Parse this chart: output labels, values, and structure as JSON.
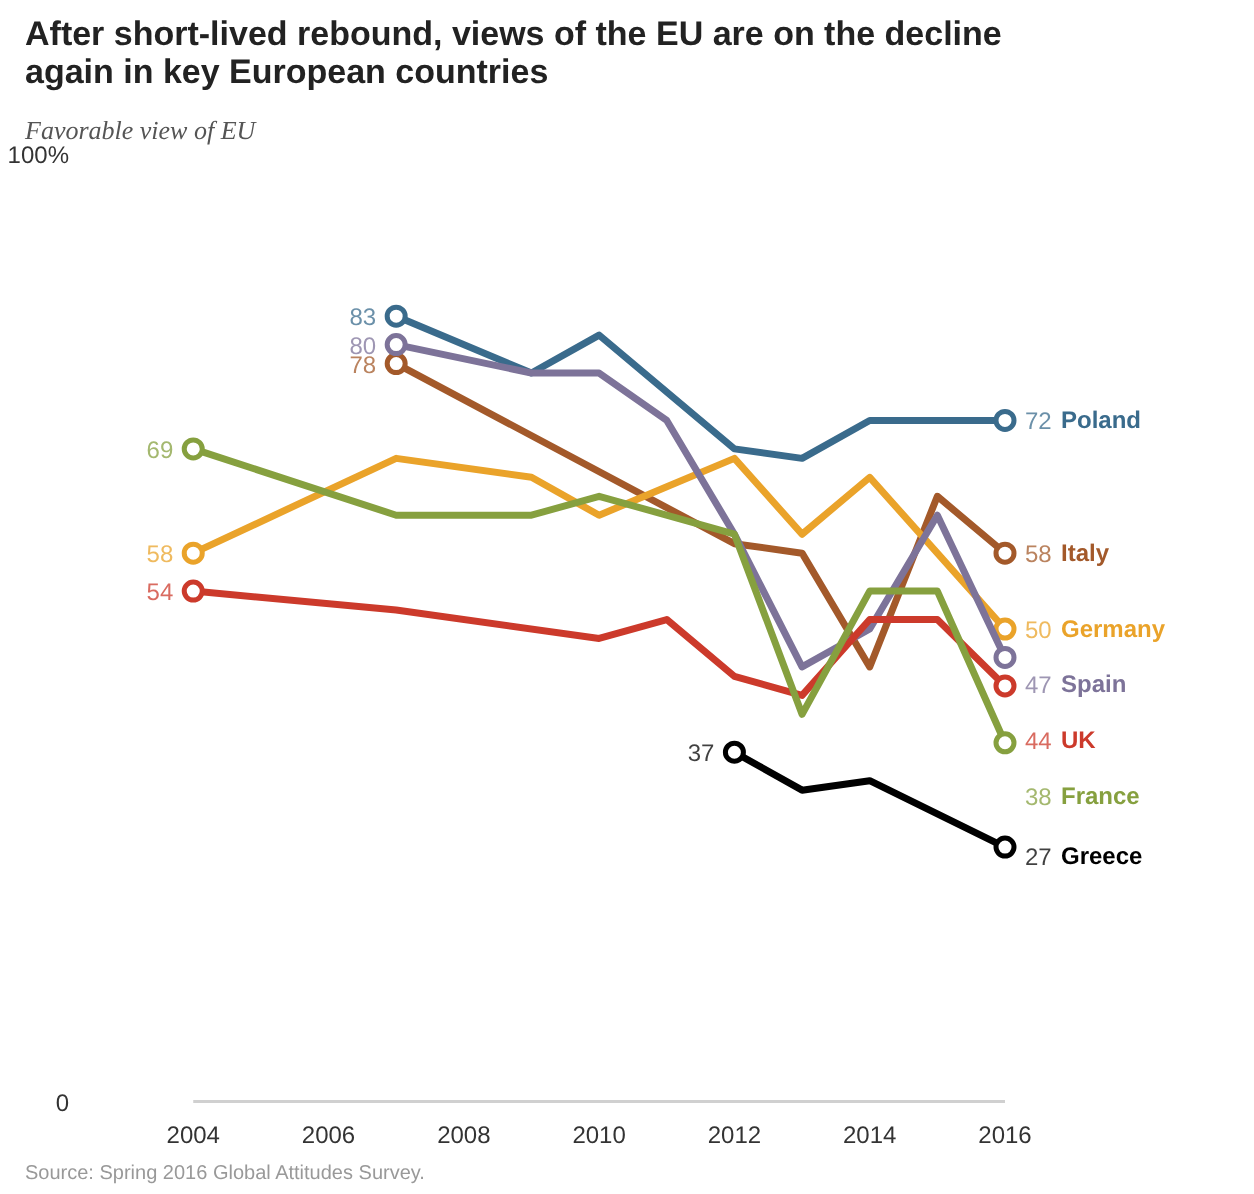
{
  "chart_data": {
    "type": "line",
    "title": "After short-lived rebound, views of the EU are on the decline again in key European countries",
    "subtitle": "Favorable view of EU",
    "xlim": [
      2004,
      2016
    ],
    "xticks": [
      2004,
      2006,
      2008,
      2010,
      2012,
      2014,
      2016
    ],
    "ylim": [
      0,
      100
    ],
    "yticks": [
      {
        "value": 0,
        "label": "0"
      },
      {
        "value": 100,
        "label": "100%"
      }
    ],
    "grid": false,
    "line_style": "solid",
    "series": [
      {
        "name": "Poland",
        "color": "#3a6b8c",
        "x": [
          2007,
          2009,
          2010,
          2012,
          2013,
          2014,
          2015,
          2016
        ],
        "values": [
          83,
          77,
          81,
          69,
          68,
          72,
          72,
          72
        ],
        "value_labels": [
          "83",
          null,
          null,
          null,
          null,
          null,
          null,
          "72"
        ]
      },
      {
        "name": "Italy",
        "color": "#a3592a",
        "x": [
          2007,
          2012,
          2013,
          2014,
          2015,
          2016
        ],
        "values": [
          78,
          59,
          58,
          46,
          64,
          58
        ],
        "value_labels": [
          "78",
          null,
          null,
          null,
          null,
          "58"
        ]
      },
      {
        "name": "Germany",
        "color": "#eaa32a",
        "x": [
          2004,
          2007,
          2009,
          2010,
          2011,
          2012,
          2013,
          2014,
          2015,
          2016
        ],
        "values": [
          58,
          68,
          66,
          62,
          65,
          68,
          60,
          66,
          58,
          50
        ],
        "value_labels": [
          "58",
          null,
          null,
          null,
          null,
          null,
          null,
          null,
          null,
          "50"
        ]
      },
      {
        "name": "Spain",
        "color": "#7d7399",
        "x": [
          2007,
          2009,
          2010,
          2011,
          2012,
          2013,
          2014,
          2015,
          2016
        ],
        "values": [
          80,
          77,
          77,
          72,
          60,
          46,
          50,
          62,
          47
        ],
        "value_labels": [
          "80",
          null,
          null,
          null,
          null,
          null,
          null,
          null,
          "47"
        ]
      },
      {
        "name": "UK",
        "color": "#cc3a2b",
        "x": [
          2004,
          2007,
          2010,
          2011,
          2012,
          2013,
          2014,
          2015,
          2016
        ],
        "values": [
          54,
          52,
          49,
          51,
          45,
          43,
          51,
          51,
          44
        ],
        "value_labels": [
          "54",
          null,
          null,
          null,
          null,
          null,
          null,
          null,
          "44"
        ]
      },
      {
        "name": "France",
        "color": "#86a03f",
        "x": [
          2004,
          2007,
          2009,
          2010,
          2012,
          2013,
          2014,
          2015,
          2016
        ],
        "values": [
          69,
          62,
          62,
          64,
          60,
          41,
          54,
          54,
          38
        ],
        "value_labels": [
          "69",
          null,
          null,
          null,
          null,
          null,
          null,
          null,
          "38"
        ]
      },
      {
        "name": "Greece",
        "color": "#000000",
        "x": [
          2012,
          2013,
          2014,
          2016
        ],
        "values": [
          37,
          33,
          34,
          27
        ],
        "value_labels": [
          "37",
          null,
          null,
          "27"
        ]
      }
    ],
    "annotations": [
      "Source: Spring 2016 Global Attitudes Survey."
    ]
  }
}
